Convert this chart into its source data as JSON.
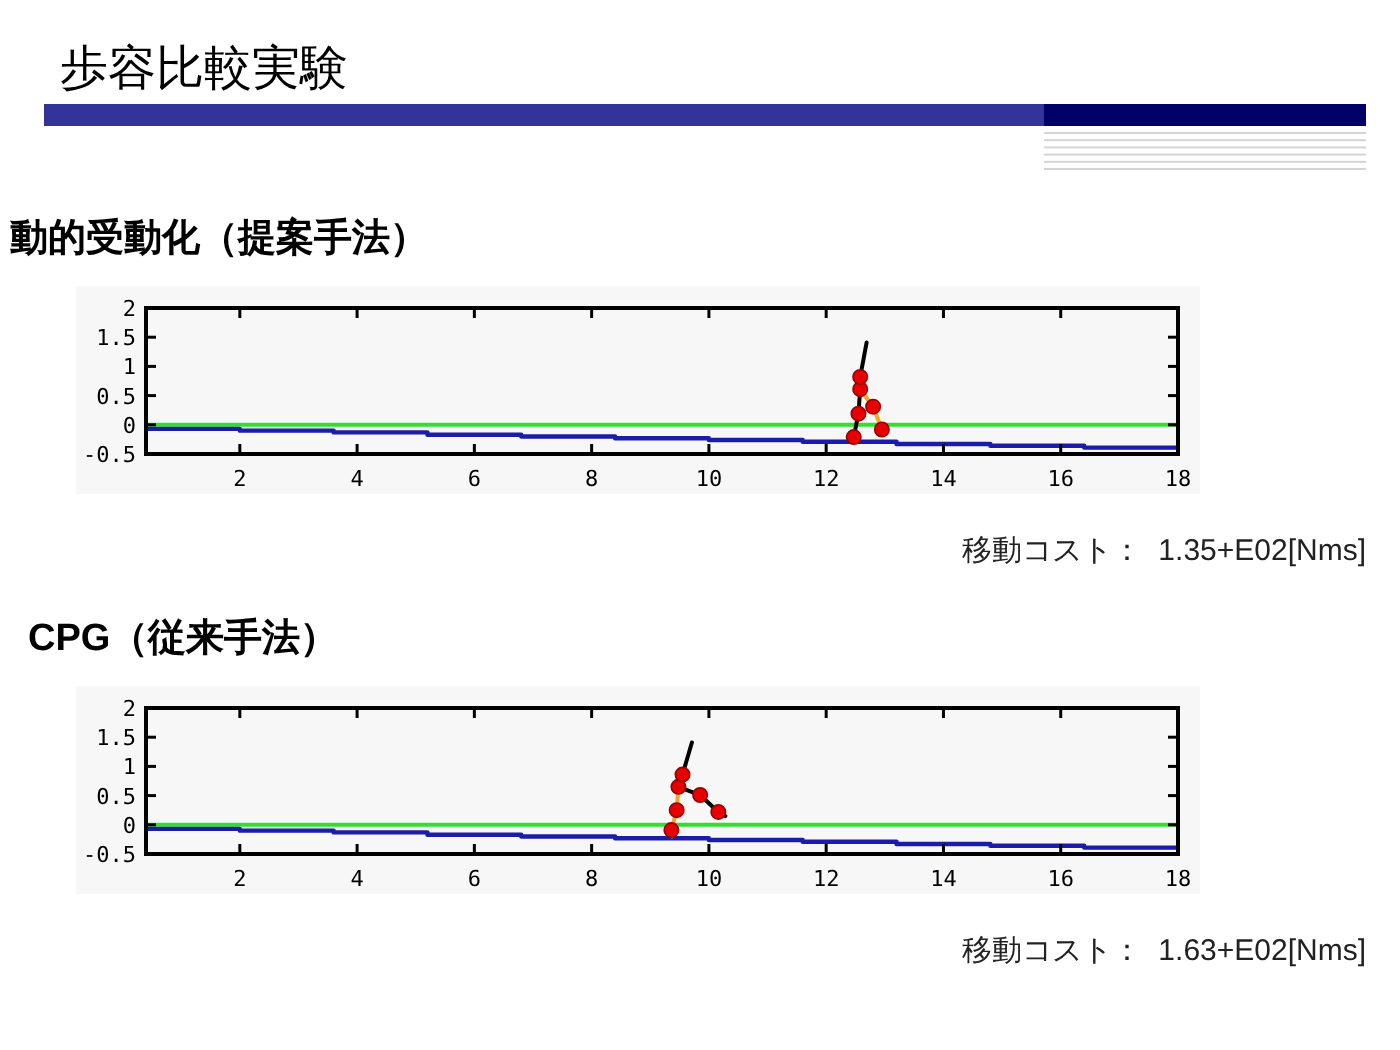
{
  "chart_data": [
    {
      "type": "other",
      "title": "歩容比較実験"
    },
    {
      "type": "line",
      "title": "動的受動化（提案手法）",
      "xlim": [
        0.4,
        18
      ],
      "ylim": [
        -0.5,
        2
      ],
      "xticks": [
        2,
        4,
        6,
        8,
        10,
        12,
        14,
        16,
        18
      ],
      "yticks": [
        -0.5,
        0,
        0.5,
        1,
        1.5,
        2
      ],
      "ref_lines": [
        {
          "axis": "y",
          "value": 0,
          "color": "#33dd33"
        }
      ],
      "series": [
        {
          "type": "step",
          "color": "#1c1caa",
          "x": [
            0.4,
            2.0,
            3.6,
            5.2,
            6.8,
            8.4,
            10.0,
            11.6,
            13.2,
            14.8,
            16.4,
            18
          ],
          "values": [
            -0.07,
            -0.1,
            -0.13,
            -0.17,
            -0.2,
            -0.23,
            -0.26,
            -0.29,
            -0.33,
            -0.36,
            -0.39,
            -0.39
          ]
        },
        {
          "type": "line",
          "color": "#000000",
          "x": [
            12.45,
            12.47,
            12.55,
            12.58,
            12.58,
            12.69
          ],
          "values": [
            -0.27,
            -0.21,
            0.19,
            0.61,
            0.82,
            1.41
          ]
        },
        {
          "type": "line",
          "color": "#f5a623",
          "x": [
            12.58,
            12.8,
            12.95,
            12.98
          ],
          "values": [
            0.61,
            0.31,
            -0.08,
            -0.12
          ]
        },
        {
          "type": "scatter",
          "color": "#e60000",
          "marker": "circle",
          "x": [
            12.47,
            12.55,
            12.58,
            12.58,
            12.8,
            12.95
          ],
          "values": [
            -0.21,
            0.19,
            0.61,
            0.82,
            0.31,
            -0.08
          ]
        }
      ],
      "annotations": [
        "移動コスト：  1.35+E02[Nms]"
      ]
    },
    {
      "type": "line",
      "title": "CPG（従来手法）",
      "xlim": [
        0.4,
        18
      ],
      "ylim": [
        -0.5,
        2
      ],
      "xticks": [
        2,
        4,
        6,
        8,
        10,
        12,
        14,
        16,
        18
      ],
      "yticks": [
        -0.5,
        0,
        0.5,
        1,
        1.5,
        2
      ],
      "ref_lines": [
        {
          "axis": "y",
          "value": 0,
          "color": "#33dd33"
        }
      ],
      "series": [
        {
          "type": "step",
          "color": "#1c1caa",
          "x": [
            0.4,
            2.0,
            3.6,
            5.2,
            6.8,
            8.4,
            10.0,
            11.6,
            13.2,
            14.8,
            16.4,
            18
          ],
          "values": [
            -0.07,
            -0.1,
            -0.13,
            -0.17,
            -0.2,
            -0.23,
            -0.26,
            -0.29,
            -0.33,
            -0.36,
            -0.39,
            -0.39
          ]
        },
        {
          "type": "line",
          "color": "#f5a623",
          "x": [
            9.37,
            9.36,
            9.45,
            9.48
          ],
          "values": [
            -0.2,
            -0.09,
            0.25,
            0.65
          ]
        },
        {
          "type": "line",
          "color": "#000000",
          "x": [
            9.71,
            9.55,
            9.48,
            9.85,
            10.16,
            10.28
          ],
          "values": [
            1.41,
            0.86,
            0.65,
            0.51,
            0.22,
            0.15
          ]
        },
        {
          "type": "scatter",
          "color": "#e60000",
          "marker": "circle",
          "x": [
            9.36,
            9.45,
            9.48,
            9.55,
            9.85,
            10.16
          ],
          "values": [
            -0.09,
            0.25,
            0.65,
            0.86,
            0.51,
            0.22
          ]
        }
      ],
      "annotations": [
        "移動コスト：  1.63+E02[Nms]"
      ]
    }
  ]
}
